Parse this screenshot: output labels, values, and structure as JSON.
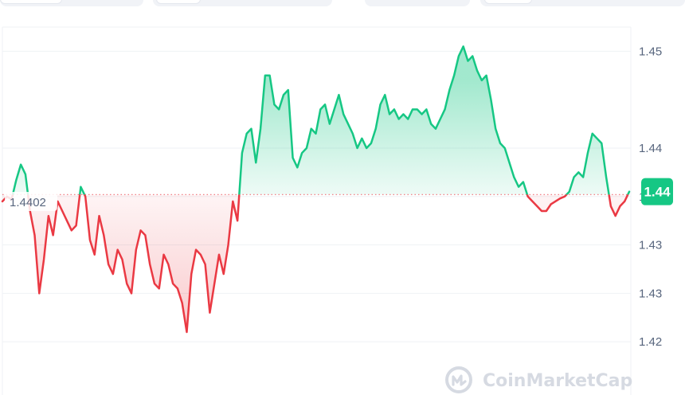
{
  "colors": {
    "up": "#16c784",
    "down": "#ea3943",
    "badge": "#16c784",
    "grid": "#eff2f5",
    "axis_text": "#58667e"
  },
  "watermark": {
    "text": "CoinMarketCap",
    "icon": "coinmarketcap-logo-icon"
  },
  "chart_data": {
    "type": "area",
    "baseline": 1.4402,
    "baseline_label": "1.4402",
    "current_label": "1.44",
    "ylim": [
      1.4195,
      1.4575
    ],
    "y_ticks": [
      {
        "value": 1.455,
        "label": "1.45"
      },
      {
        "value": 1.445,
        "label": "1.44"
      },
      {
        "value": 1.44,
        "label": "1.44"
      },
      {
        "value": 1.435,
        "label": "1.43"
      },
      {
        "value": 1.43,
        "label": "1.43"
      },
      {
        "value": 1.425,
        "label": "1.42"
      }
    ],
    "grid": true,
    "series": [
      {
        "values": [
          1.4395,
          1.44,
          1.4397,
          1.4417,
          1.4433,
          1.4423,
          1.4385,
          1.436,
          1.43,
          1.4335,
          1.438,
          1.436,
          1.4395,
          1.4385,
          1.4375,
          1.4365,
          1.437,
          1.441,
          1.44,
          1.4355,
          1.434,
          1.438,
          1.436,
          1.433,
          1.432,
          1.4345,
          1.4335,
          1.431,
          1.43,
          1.4345,
          1.4365,
          1.436,
          1.433,
          1.431,
          1.4305,
          1.434,
          1.433,
          1.431,
          1.4305,
          1.429,
          1.426,
          1.432,
          1.4345,
          1.434,
          1.433,
          1.428,
          1.431,
          1.434,
          1.432,
          1.435,
          1.4395,
          1.4375,
          1.4445,
          1.4465,
          1.447,
          1.4435,
          1.447,
          1.4525,
          1.4525,
          1.4495,
          1.449,
          1.4505,
          1.451,
          1.444,
          1.443,
          1.4445,
          1.445,
          1.447,
          1.4465,
          1.449,
          1.4495,
          1.4475,
          1.449,
          1.4505,
          1.4485,
          1.4475,
          1.4465,
          1.445,
          1.446,
          1.445,
          1.4455,
          1.447,
          1.4495,
          1.4505,
          1.4485,
          1.449,
          1.448,
          1.4485,
          1.448,
          1.449,
          1.449,
          1.4485,
          1.449,
          1.4475,
          1.447,
          1.448,
          1.449,
          1.451,
          1.4525,
          1.4545,
          1.4555,
          1.454,
          1.4545,
          1.453,
          1.452,
          1.4525,
          1.45,
          1.447,
          1.4455,
          1.445,
          1.4435,
          1.442,
          1.441,
          1.4415,
          1.44,
          1.4395,
          1.439,
          1.4385,
          1.4385,
          1.4392,
          1.4395,
          1.4398,
          1.44,
          1.4405,
          1.442,
          1.4425,
          1.442,
          1.4445,
          1.4465,
          1.446,
          1.4455,
          1.442,
          1.439,
          1.438,
          1.439,
          1.4395,
          1.4405
        ]
      }
    ]
  }
}
